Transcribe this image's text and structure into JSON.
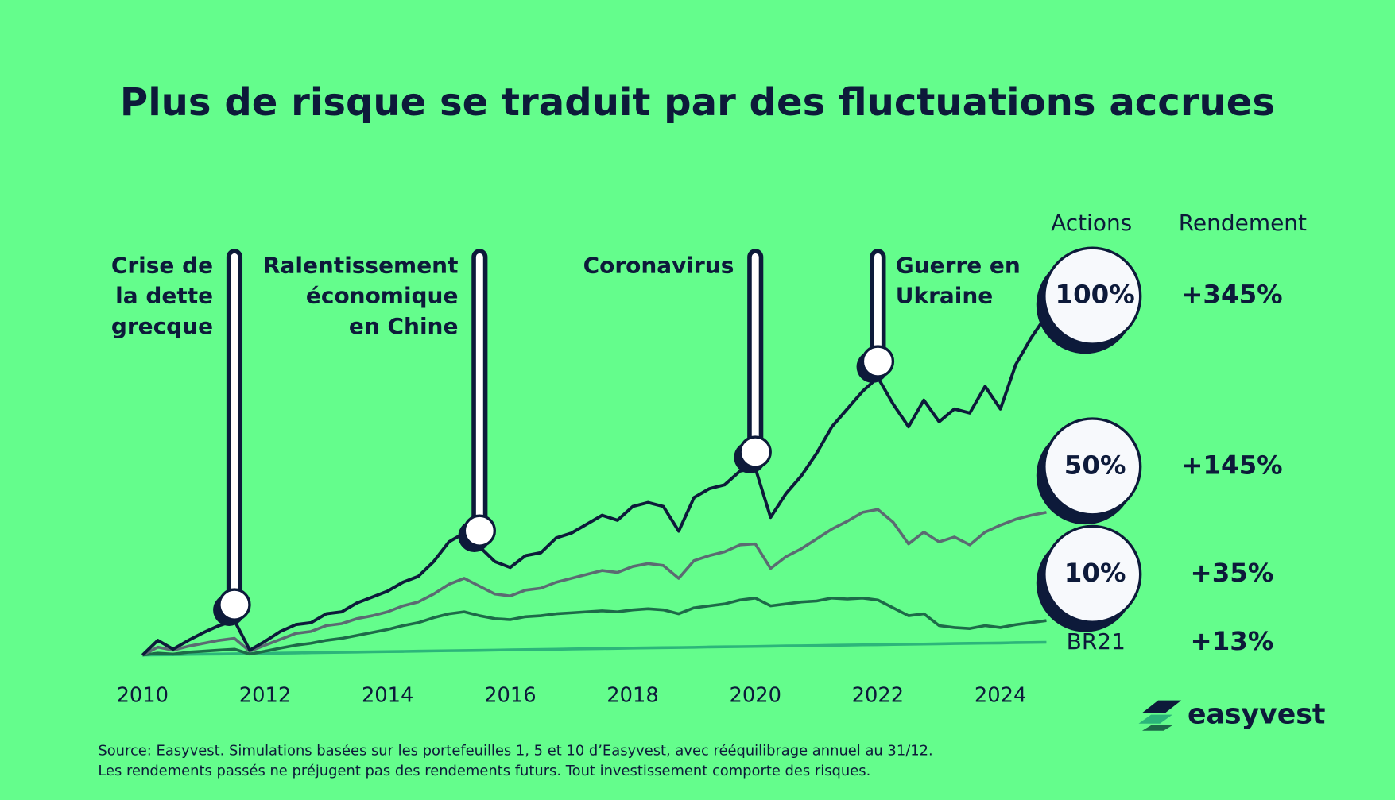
{
  "chart_data": {
    "type": "line",
    "title": "Plus de risque se traduit par des fluctuations accrues",
    "column_headers": [
      "Actions",
      "Rendement"
    ],
    "x": [
      2010,
      2010.25,
      2010.5,
      2010.75,
      2011,
      2011.25,
      2011.5,
      2011.75,
      2012,
      2012.25,
      2012.5,
      2012.75,
      2013,
      2013.25,
      2013.5,
      2013.75,
      2014,
      2014.25,
      2014.5,
      2014.75,
      2015,
      2015.25,
      2015.5,
      2015.75,
      2016,
      2016.25,
      2016.5,
      2016.75,
      2017,
      2017.25,
      2017.5,
      2017.75,
      2018,
      2018.25,
      2018.5,
      2018.75,
      2019,
      2019.25,
      2019.5,
      2019.75,
      2020,
      2020.25,
      2020.5,
      2020.75,
      2021,
      2021.25,
      2021.5,
      2021.75,
      2022,
      2022.25,
      2022.5,
      2022.75,
      2023,
      2023.25,
      2023.5,
      2023.75,
      2024,
      2024.25,
      2024.5,
      2024.75
    ],
    "xlim": [
      2010,
      2025
    ],
    "xticks": [
      2010,
      2012,
      2014,
      2016,
      2018,
      2020,
      2022,
      2024
    ],
    "ylim": [
      0,
      400
    ],
    "grid": false,
    "series": [
      {
        "name": "100%",
        "color": "#0d1a3a",
        "end_label": "+345%",
        "values": [
          0,
          15,
          6,
          15,
          23,
          30,
          35,
          5,
          14,
          24,
          31,
          33,
          42,
          44,
          53,
          59,
          65,
          74,
          80,
          95,
          115,
          124,
          110,
          95,
          89,
          101,
          104,
          119,
          124,
          133,
          142,
          137,
          151,
          155,
          151,
          126,
          160,
          169,
          173,
          187,
          190,
          140,
          164,
          182,
          205,
          232,
          250,
          268,
          282,
          255,
          232,
          259,
          237,
          250,
          246,
          273,
          250,
          295,
          322,
          345
        ]
      },
      {
        "name": "50%",
        "color": "#5b6a72",
        "end_label": "+145%",
        "values": [
          0,
          8,
          5,
          9,
          12,
          15,
          17,
          4,
          10,
          16,
          22,
          24,
          30,
          32,
          37,
          40,
          44,
          50,
          54,
          62,
          72,
          78,
          70,
          62,
          60,
          66,
          68,
          74,
          78,
          82,
          86,
          84,
          90,
          93,
          91,
          78,
          96,
          101,
          105,
          112,
          113,
          88,
          100,
          108,
          118,
          128,
          136,
          145,
          148,
          135,
          113,
          125,
          115,
          120,
          112,
          125,
          132,
          138,
          142,
          145
        ]
      },
      {
        "name": "10%",
        "color": "#1d6a48",
        "end_label": "+35%",
        "values": [
          0,
          2,
          1,
          3,
          4,
          5,
          6,
          1,
          4,
          7,
          10,
          12,
          15,
          17,
          20,
          23,
          26,
          30,
          33,
          38,
          42,
          44,
          40,
          37,
          36,
          39,
          40,
          42,
          43,
          44,
          45,
          44,
          46,
          47,
          46,
          42,
          48,
          50,
          52,
          56,
          58,
          50,
          52,
          54,
          55,
          58,
          57,
          58,
          56,
          48,
          40,
          42,
          30,
          28,
          27,
          30,
          28,
          31,
          33,
          35
        ]
      },
      {
        "name": "BR21",
        "color": "#2cb57a",
        "end_label": "+13%",
        "values": [
          0,
          0.2,
          0.4,
          0.7,
          0.9,
          1.1,
          1.3,
          1.5,
          1.8,
          2.0,
          2.2,
          2.4,
          2.6,
          2.9,
          3.1,
          3.3,
          3.5,
          3.7,
          4.0,
          4.2,
          4.4,
          4.6,
          4.8,
          5.1,
          5.3,
          5.5,
          5.7,
          5.9,
          6.2,
          6.4,
          6.6,
          6.8,
          7.1,
          7.3,
          7.5,
          7.7,
          7.9,
          8.2,
          8.4,
          8.6,
          8.8,
          9.0,
          9.3,
          9.5,
          9.7,
          9.9,
          10.1,
          10.4,
          10.6,
          10.8,
          11.0,
          11.2,
          11.5,
          11.7,
          11.9,
          12.1,
          12.3,
          12.6,
          12.8,
          13.0
        ]
      }
    ],
    "annotations": [
      {
        "x": 2011.5,
        "side": "left",
        "lines": [
          "Crise de",
          "la dette",
          "grecque"
        ]
      },
      {
        "x": 2015.5,
        "side": "left",
        "lines": [
          "Ralentissement",
          "économique",
          "en Chine"
        ]
      },
      {
        "x": 2020,
        "side": "left",
        "lines": [
          "Coronavirus"
        ]
      },
      {
        "x": 2022,
        "side": "right",
        "lines": [
          "Guerre en",
          "Ukraine"
        ]
      }
    ],
    "source": [
      "Source: Easyvest. Simulations basées sur les portefeuilles 1, 5 et 10 d’Easyvest, avec rééquilibrage annuel au 31/12.",
      "Les rendements passés ne préjugent pas des rendements futurs. Tout investissement comporte des risques."
    ]
  },
  "logo": "easyvest"
}
